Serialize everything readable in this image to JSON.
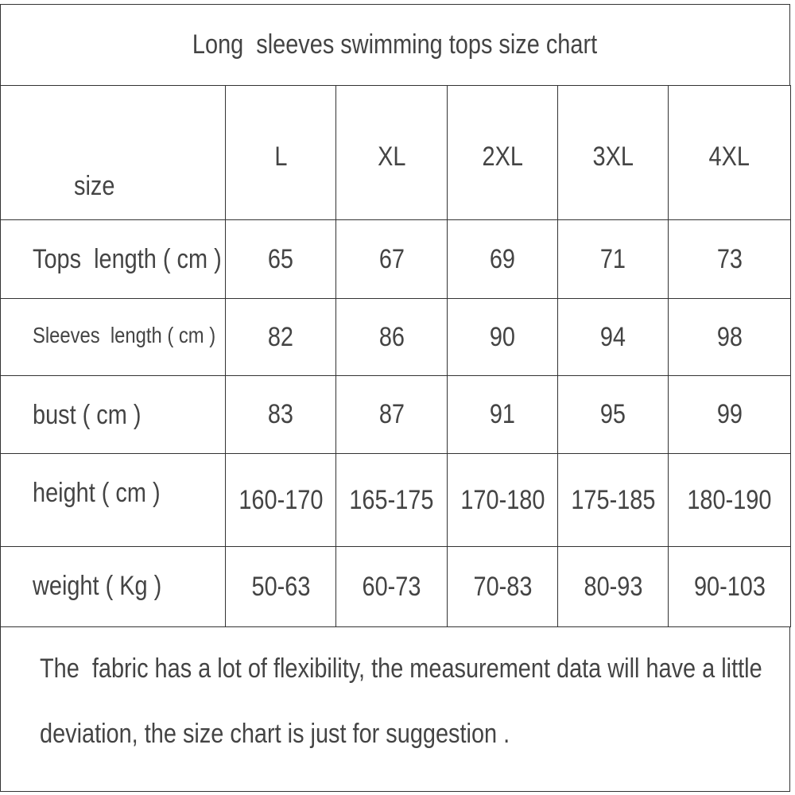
{
  "title": "Long  sleeves swimming tops size chart",
  "table": {
    "header": [
      "size",
      "L",
      "XL",
      "2XL",
      "3XL",
      "4XL"
    ],
    "rows": [
      [
        "Tops  length ( cm )",
        "65",
        "67",
        "69",
        "71",
        "73"
      ],
      [
        "Sleeves  length ( cm )",
        "82",
        "86",
        "90",
        "94",
        "98"
      ],
      [
        "bust ( cm )",
        "83",
        "87",
        "91",
        "95",
        "99"
      ],
      [
        "height ( cm )",
        "160-170",
        "165-175",
        "170-180",
        "175-185",
        "180-190"
      ],
      [
        "weight ( Kg )",
        "50-63",
        "60-73",
        "70-83",
        "80-93",
        "90-103"
      ]
    ]
  },
  "note": {
    "lines": [
      "The  fabric has a lot of flexibility, the measurement data will have a little",
      "deviation, the size chart is just for suggestion ."
    ]
  }
}
